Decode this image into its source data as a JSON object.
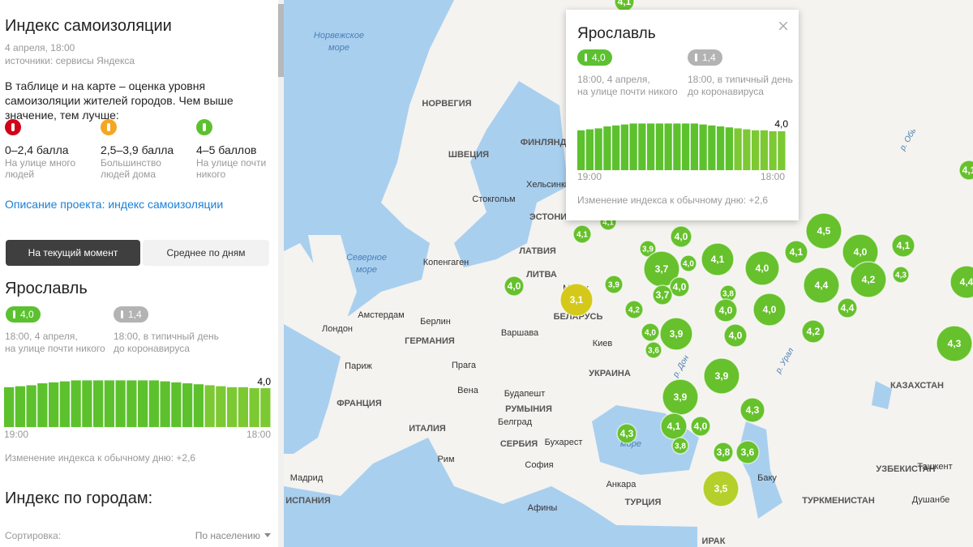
{
  "panel": {
    "title": "Индекс самоизоляции",
    "date": "4 апреля, 18:00",
    "source": "источники: сервисы Яндекса",
    "description": "В таблице и на карте – оценка уровня самоизоляции жителей городов. Чем выше значение, тем лучше:",
    "legend": [
      {
        "range": "0–2,4 балла",
        "note": "На улице много людей"
      },
      {
        "range": "2,5–3,9 балла",
        "note": "Большинство людей дома"
      },
      {
        "range": "4–5 баллов",
        "note": "На улице почти никого"
      }
    ],
    "link": "Описание проекта: индекс самоизоляции",
    "tabs": [
      "На текущий момент",
      "Среднее по дням"
    ],
    "city": "Ярославль",
    "now": {
      "badge": "4,0",
      "time": "18:00, 4 апреля,",
      "note": "на улице почти никого"
    },
    "typical": {
      "badge": "1,4",
      "time": "18:00, в типичный день",
      "note": "до коронавируса"
    },
    "chart": {
      "values": [
        4.1,
        4.2,
        4.3,
        4.5,
        4.6,
        4.7,
        4.8,
        4.8,
        4.8,
        4.8,
        4.8,
        4.8,
        4.8,
        4.8,
        4.7,
        4.6,
        4.5,
        4.4,
        4.3,
        4.2,
        4.1,
        4.1,
        4.0,
        4.0
      ],
      "last_label": "4,0",
      "start": "19:00",
      "end": "18:00"
    },
    "change": "Изменение индекса к обычному дню: +2,6",
    "cities_title": "Индекс по городам:",
    "sort_label": "Сортировка:",
    "sort_value": "По населению"
  },
  "popup": {
    "city": "Ярославль",
    "now": {
      "badge": "4,0",
      "time": "18:00, 4 апреля,",
      "note": "на улице почти никого"
    },
    "typical": {
      "badge": "1,4",
      "time": "18:00, в типичный день",
      "note": "до коронавируса"
    },
    "last_label": "4,0",
    "start": "19:00",
    "end": "18:00",
    "change": "Изменение индекса к обычному дню: +2,6"
  },
  "map": {
    "labels": [
      "Норвежское",
      "море",
      "Северное",
      "море",
      "море",
      "НОРВЕГИЯ",
      "ШВЕЦИЯ",
      "ФИНЛЯНДИЯ",
      "ЭСТОНИЯ",
      "ЛАТВИЯ",
      "ЛИТВА",
      "БЕЛАРУСЬ",
      "ГЕРМАНИЯ",
      "УКРАИНА",
      "ФРАНЦИЯ",
      "РУМЫНИЯ",
      "ИТАЛИЯ",
      "СЕРБИЯ",
      "ИСПАНИЯ",
      "ТУРЦИЯ",
      "КАЗАХСТАН",
      "УЗБЕКИСТАН",
      "ТУРКМЕНИСТАН",
      "ИРАК",
      "Хельсинки",
      "Стокгольм",
      "Копенгаген",
      "Амстердам",
      "Берлин",
      "Лондон",
      "Варшава",
      "Киев",
      "Париж",
      "Прага",
      "Вена",
      "Будапешт",
      "Белград",
      "Бухарест",
      "София",
      "Рим",
      "Мадрид",
      "Анкара",
      "Афины",
      "Баку",
      "Ташкент",
      "Душанбе",
      "Минск",
      "р. Дон",
      "р. Урал",
      "р. Обь"
    ],
    "clusters": [
      "3,1",
      "4,0",
      "4,1",
      "4,1",
      "3,9",
      "3,7",
      "3,9",
      "4,2",
      "4,0",
      "4,0",
      "4,1",
      "4,0",
      "3,7",
      "4,0",
      "3,9",
      "3,6",
      "3,8",
      "4,0",
      "4,0",
      "4,0",
      "4,0",
      "4,1",
      "4,5",
      "4,0",
      "4,4",
      "4,2",
      "4,1",
      "4,3",
      "4,4",
      "4,2",
      "4,3",
      "3,9",
      "3,9",
      "4,3",
      "4,1",
      "4,0",
      "4,3",
      "3,8",
      "3,8",
      "3,6",
      "3,5",
      "4,4",
      "4,1",
      "4,1"
    ]
  }
}
